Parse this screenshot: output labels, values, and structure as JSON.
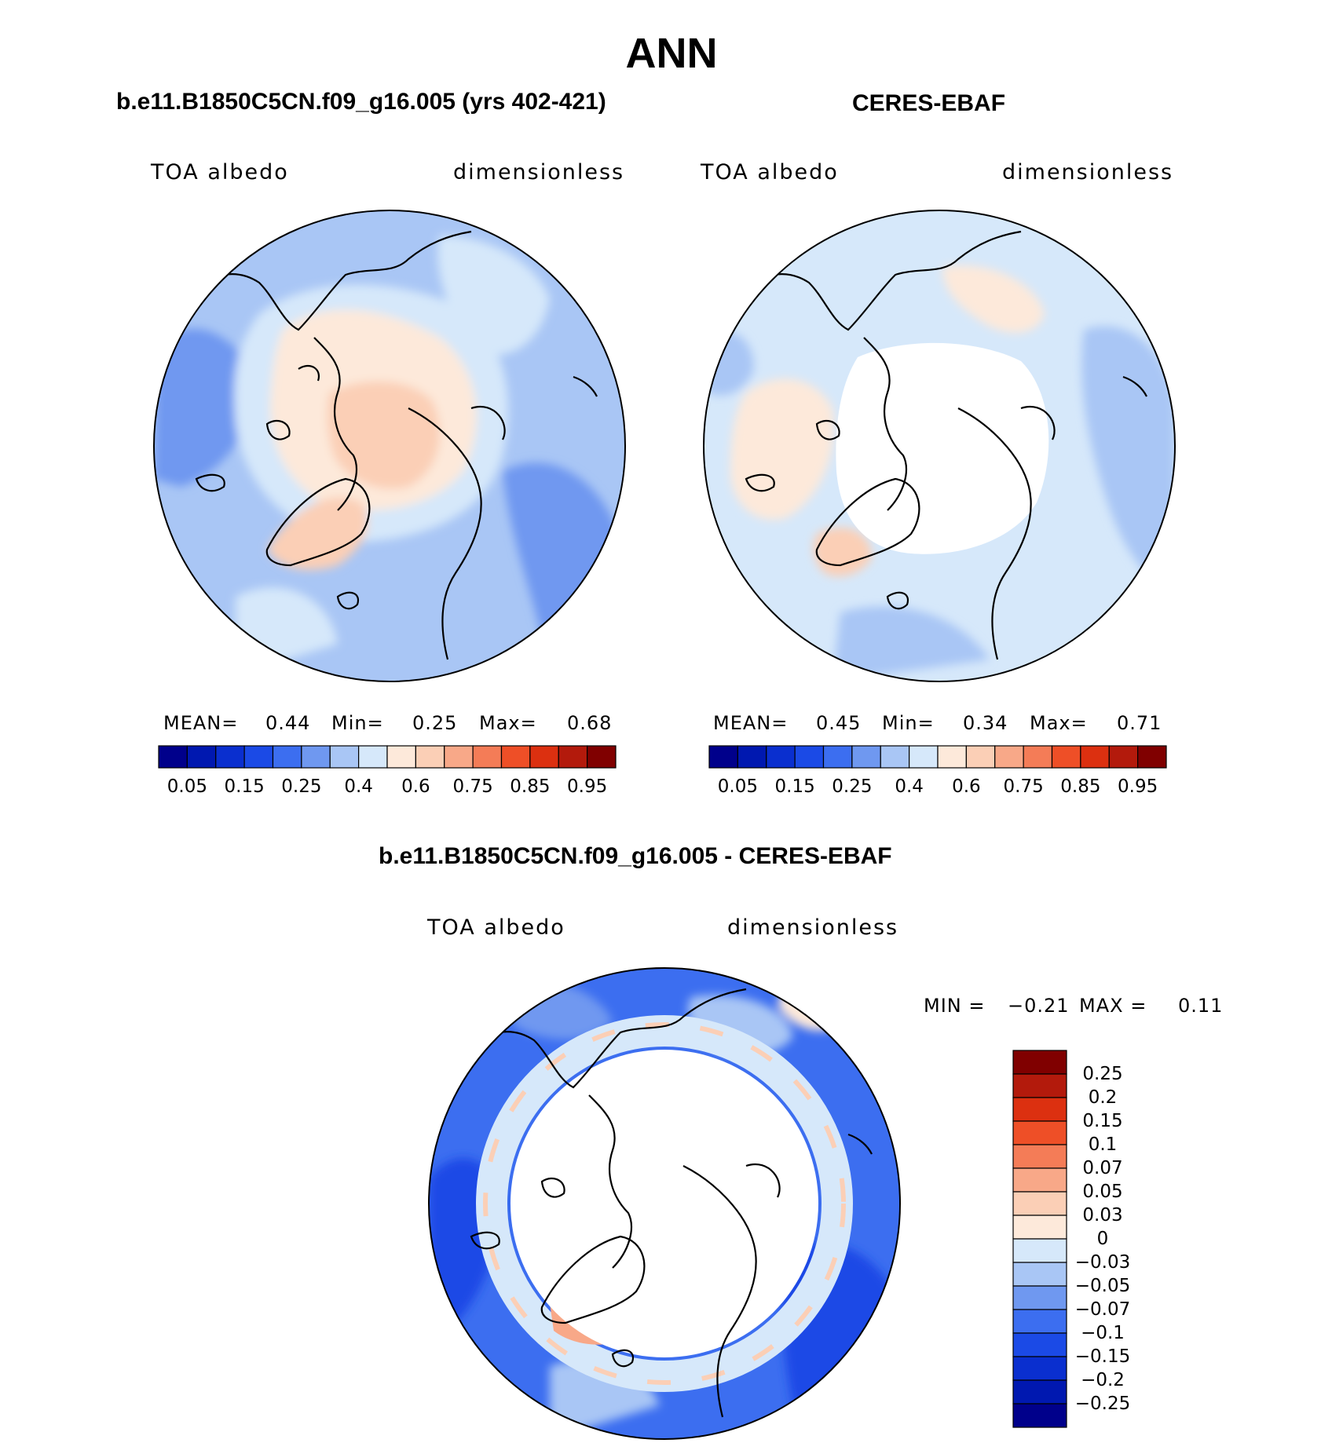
{
  "title": "ANN",
  "panels": {
    "model": {
      "title": "b.e11.B1850C5CN.f09_g16.005 (yrs 402-421)",
      "left_label": "TOA albedo",
      "right_label": "dimensionless",
      "stats": {
        "mean_label": "MEAN=",
        "mean": "0.44",
        "min_label": "Min=",
        "min": "0.25",
        "max_label": "Max=",
        "max": "0.68"
      }
    },
    "obs": {
      "title": "CERES-EBAF",
      "left_label": "TOA albedo",
      "right_label": "dimensionless",
      "stats": {
        "mean_label": "MEAN=",
        "mean": "0.45",
        "min_label": "Min=",
        "min": "0.34",
        "max_label": "Max=",
        "max": "0.71"
      }
    },
    "diff": {
      "title": "b.e11.B1850C5CN.f09_g16.005 - CERES-EBAF",
      "left_label": "TOA albedo",
      "right_label": "dimensionless",
      "stats": {
        "min_label": "MIN =",
        "min": "−0.21",
        "max_label": "MAX =",
        "max": "0.11"
      }
    }
  },
  "colorbars": {
    "abs": {
      "colors": [
        "#00008b",
        "#0018b0",
        "#0a2fcf",
        "#1b4ae6",
        "#3c6ef0",
        "#6f98f0",
        "#a9c6f5",
        "#d6e8fa",
        "#fde9da",
        "#fbcfb6",
        "#f8a888",
        "#f47c57",
        "#ee4f27",
        "#dc3010",
        "#b31a0c",
        "#800000"
      ],
      "tick_labels": [
        "0.05",
        "0.15",
        "0.25",
        "0.4",
        "0.6",
        "0.75",
        "0.85",
        "0.95"
      ]
    },
    "diff": {
      "colors": [
        "#00008b",
        "#0018b0",
        "#0a2fcf",
        "#1b4ae6",
        "#3c6ef0",
        "#6f98f0",
        "#a9c6f5",
        "#d6e8fa",
        "#fde9da",
        "#fbcfb6",
        "#f8a888",
        "#f47c57",
        "#ee4f27",
        "#dc3010",
        "#b31a0c",
        "#800000"
      ],
      "tick_labels": [
        "0.25",
        "0.2",
        "0.15",
        "0.1",
        "0.07",
        "0.05",
        "0.03",
        "0",
        "−0.03",
        "−0.05",
        "−0.07",
        "−0.1",
        "−0.15",
        "−0.2",
        "−0.25"
      ]
    }
  },
  "chart_data": [
    {
      "type": "heatmap",
      "projection": "north polar stereographic",
      "title": "b.e11.B1850C5CN.f09_g16.005 (yrs 402-421)",
      "variable": "TOA albedo",
      "units": "dimensionless",
      "mean": 0.44,
      "min": 0.25,
      "max": 0.68,
      "contour_levels": [
        0.05,
        0.1,
        0.15,
        0.2,
        0.25,
        0.3,
        0.35,
        0.4,
        0.5,
        0.6,
        0.7,
        0.75,
        0.8,
        0.85,
        0.9,
        0.95
      ]
    },
    {
      "type": "heatmap",
      "projection": "north polar stereographic",
      "title": "CERES-EBAF",
      "variable": "TOA albedo",
      "units": "dimensionless",
      "mean": 0.45,
      "min": 0.34,
      "max": 0.71,
      "contour_levels": [
        0.05,
        0.1,
        0.15,
        0.2,
        0.25,
        0.3,
        0.35,
        0.4,
        0.5,
        0.6,
        0.7,
        0.75,
        0.8,
        0.85,
        0.9,
        0.95
      ]
    },
    {
      "type": "heatmap",
      "projection": "north polar stereographic",
      "title": "b.e11.B1850C5CN.f09_g16.005 - CERES-EBAF",
      "variable": "TOA albedo",
      "units": "dimensionless",
      "min": -0.21,
      "max": 0.11,
      "contour_levels": [
        -0.25,
        -0.2,
        -0.15,
        -0.1,
        -0.07,
        -0.05,
        -0.03,
        0,
        0.03,
        0.05,
        0.07,
        0.1,
        0.15,
        0.2,
        0.25
      ]
    }
  ]
}
